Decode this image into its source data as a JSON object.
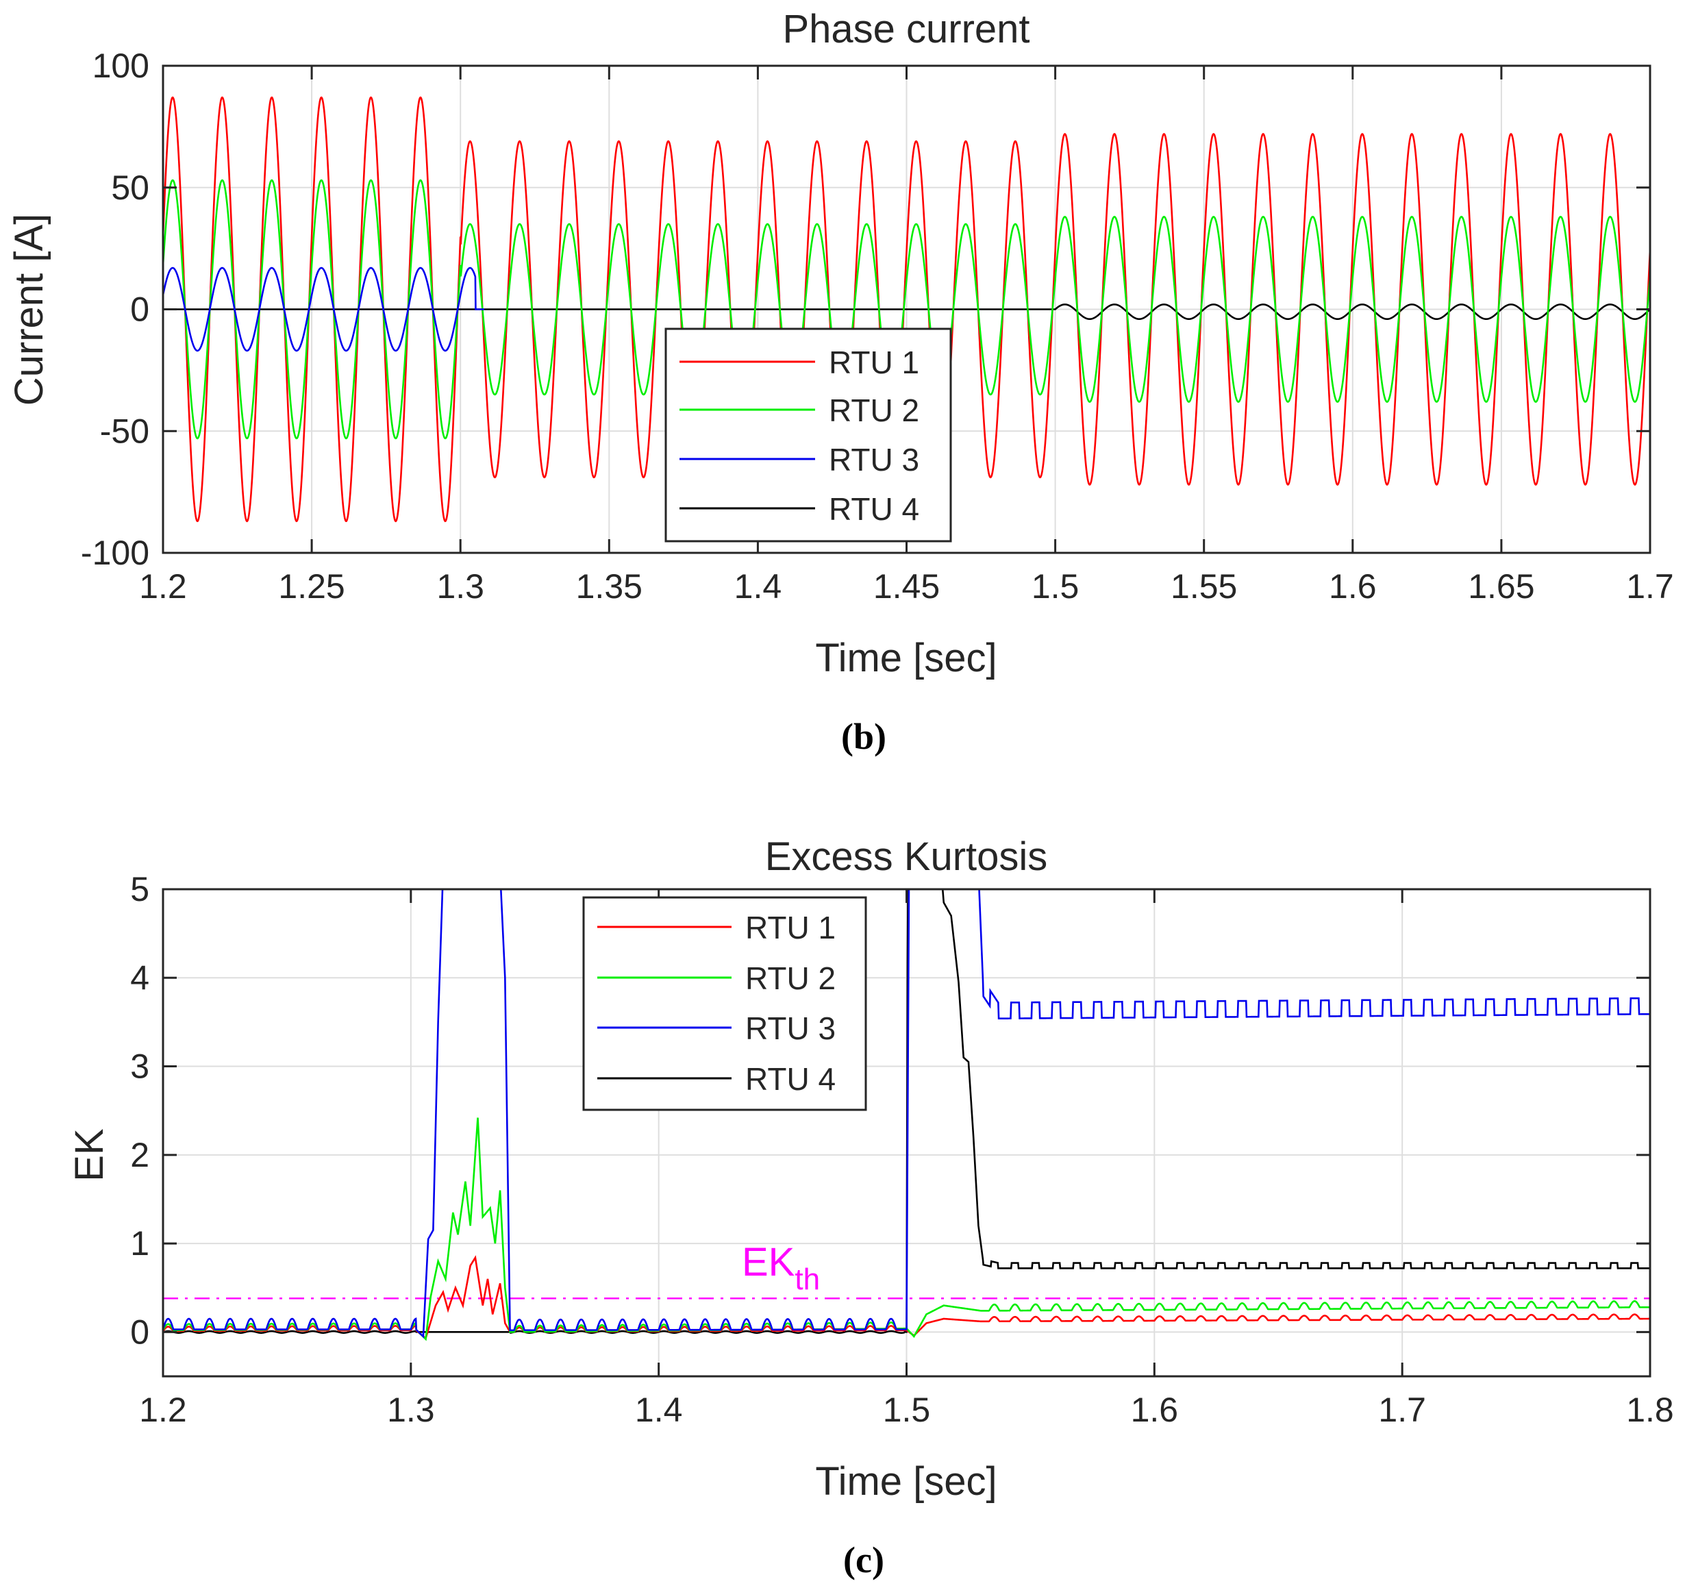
{
  "chart_data": [
    {
      "panel": "b",
      "type": "line",
      "title": "Phase current",
      "xlabel": "Time [sec]",
      "ylabel": "Current [A]",
      "xlim": [
        1.2,
        1.7
      ],
      "ylim": [
        -100,
        100
      ],
      "xticks": [
        1.2,
        1.25,
        1.3,
        1.35,
        1.4,
        1.45,
        1.5,
        1.55,
        1.6,
        1.65,
        1.7
      ],
      "xtick_labels": [
        "1.2",
        "1.25",
        "1.3",
        "1.35",
        "1.4",
        "1.45",
        "1.5",
        "1.55",
        "1.6",
        "1.65",
        "1.7"
      ],
      "yticks": [
        -100,
        -50,
        0,
        50,
        100
      ],
      "ytick_labels": [
        "-100",
        "-50",
        "0",
        "50",
        "100"
      ],
      "grid": true,
      "legend": "center",
      "frequency_hz": 60,
      "series": [
        {
          "name": "RTU 1",
          "color": "#ff0000",
          "segments": [
            {
              "t0": 1.2,
              "t1": 1.3,
              "amplitude": 87,
              "offset": 0
            },
            {
              "t0": 1.3,
              "t1": 1.5,
              "amplitude": 69,
              "offset": 0
            },
            {
              "t0": 1.5,
              "t1": 1.7,
              "amplitude": 72,
              "offset": 0
            }
          ]
        },
        {
          "name": "RTU 2",
          "color": "#00ee00",
          "segments": [
            {
              "t0": 1.2,
              "t1": 1.3,
              "amplitude": 53,
              "offset": 0
            },
            {
              "t0": 1.3,
              "t1": 1.5,
              "amplitude": 35,
              "offset": 0
            },
            {
              "t0": 1.5,
              "t1": 1.7,
              "amplitude": 38,
              "offset": 0
            }
          ]
        },
        {
          "name": "RTU 3",
          "color": "#0000ee",
          "segments": [
            {
              "t0": 1.2,
              "t1": 1.305,
              "amplitude": 17,
              "offset": 0
            },
            {
              "t0": 1.305,
              "t1": 1.7,
              "amplitude": 0,
              "offset": 0
            }
          ]
        },
        {
          "name": "RTU 4",
          "color": "#000000",
          "segments": [
            {
              "t0": 1.2,
              "t1": 1.5,
              "amplitude": 0,
              "offset": 0
            },
            {
              "t0": 1.5,
              "t1": 1.7,
              "amplitude": 3,
              "offset": -1
            }
          ]
        }
      ],
      "caption": "(b)"
    },
    {
      "panel": "c",
      "type": "line",
      "title": "Excess Kurtosis",
      "xlabel": "Time [sec]",
      "ylabel": "EK",
      "xlim": [
        1.2,
        1.8
      ],
      "ylim": [
        -0.5,
        5
      ],
      "xticks": [
        1.2,
        1.3,
        1.4,
        1.5,
        1.6,
        1.7,
        1.8
      ],
      "xtick_labels": [
        "1.2",
        "1.3",
        "1.4",
        "1.5",
        "1.6",
        "1.7",
        "1.8"
      ],
      "yticks": [
        0,
        1,
        2,
        3,
        4,
        5
      ],
      "ytick_labels": [
        "0",
        "1",
        "2",
        "3",
        "4",
        "5"
      ],
      "grid": true,
      "legend": "top-center",
      "threshold": {
        "label": "EK",
        "subscript": "th",
        "value": 0.38,
        "color": "#ff00ff",
        "style": "dash-dot"
      },
      "series": [
        {
          "name": "RTU 1",
          "color": "#ff0000",
          "points": [
            [
              1.2,
              0.01
            ],
            [
              1.302,
              0.02
            ],
            [
              1.306,
              -0.07
            ],
            [
              1.31,
              0.3
            ],
            [
              1.313,
              0.45
            ],
            [
              1.315,
              0.25
            ],
            [
              1.318,
              0.5
            ],
            [
              1.321,
              0.3
            ],
            [
              1.324,
              0.75
            ],
            [
              1.326,
              0.84
            ],
            [
              1.329,
              0.3
            ],
            [
              1.331,
              0.6
            ],
            [
              1.333,
              0.2
            ],
            [
              1.336,
              0.55
            ],
            [
              1.338,
              0.1
            ],
            [
              1.34,
              0.0
            ],
            [
              1.5,
              0.02
            ],
            [
              1.503,
              -0.04
            ],
            [
              1.508,
              0.1
            ],
            [
              1.515,
              0.15
            ],
            [
              1.53,
              0.12
            ],
            [
              1.8,
              0.15
            ]
          ],
          "ripple": 0.05
        },
        {
          "name": "RTU 2",
          "color": "#00ee00",
          "points": [
            [
              1.2,
              0.02
            ],
            [
              1.302,
              0.03
            ],
            [
              1.306,
              -0.08
            ],
            [
              1.308,
              0.4
            ],
            [
              1.311,
              0.8
            ],
            [
              1.314,
              0.6
            ],
            [
              1.317,
              1.35
            ],
            [
              1.319,
              1.1
            ],
            [
              1.322,
              1.7
            ],
            [
              1.324,
              1.2
            ],
            [
              1.327,
              2.42
            ],
            [
              1.329,
              1.3
            ],
            [
              1.332,
              1.4
            ],
            [
              1.334,
              1.0
            ],
            [
              1.336,
              1.6
            ],
            [
              1.338,
              0.5
            ],
            [
              1.34,
              0.0
            ],
            [
              1.5,
              0.04
            ],
            [
              1.503,
              -0.05
            ],
            [
              1.508,
              0.2
            ],
            [
              1.515,
              0.3
            ],
            [
              1.53,
              0.24
            ],
            [
              1.8,
              0.28
            ]
          ],
          "ripple": 0.07
        },
        {
          "name": "RTU 3",
          "color": "#0000ee",
          "points": [
            [
              1.2,
              0.03
            ],
            [
              1.302,
              0.03
            ],
            [
              1.305,
              -0.05
            ],
            [
              1.307,
              1.05
            ],
            [
              1.309,
              1.15
            ],
            [
              1.311,
              3.5
            ],
            [
              1.313,
              5.2
            ],
            [
              1.336,
              5.2
            ],
            [
              1.338,
              4.0
            ],
            [
              1.34,
              0.02
            ],
            [
              1.5,
              0.03
            ],
            [
              1.501,
              5.2
            ],
            [
              1.529,
              5.2
            ],
            [
              1.531,
              3.85
            ],
            [
              1.537,
              3.6
            ],
            [
              1.8,
              3.65
            ]
          ],
          "ripple": 0.12
        },
        {
          "name": "RTU 4",
          "color": "#000000",
          "points": [
            [
              1.2,
              0.0
            ],
            [
              1.5,
              0.0
            ],
            [
              1.5005,
              5.2
            ],
            [
              1.514,
              5.2
            ],
            [
              1.515,
              4.85
            ],
            [
              1.518,
              4.7
            ],
            [
              1.521,
              3.95
            ],
            [
              1.523,
              3.1
            ],
            [
              1.525,
              3.05
            ],
            [
              1.527,
              2.2
            ],
            [
              1.529,
              1.2
            ],
            [
              1.531,
              0.78
            ],
            [
              1.537,
              0.74
            ],
            [
              1.8,
              0.74
            ]
          ],
          "ripple": 0.04
        }
      ],
      "caption": "(c)"
    }
  ]
}
